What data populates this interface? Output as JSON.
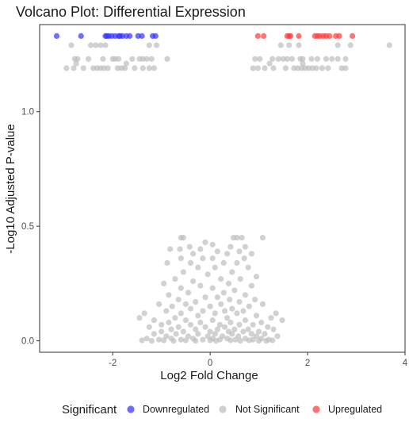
{
  "chart_data": {
    "type": "scatter",
    "title": "Volcano Plot: Differential Expression",
    "xlabel": "Log2 Fold Change",
    "ylabel": "-Log10 Adjusted P-value",
    "xlim": [
      -3.5,
      4.0
    ],
    "ylim": [
      -0.05,
      1.38
    ],
    "x_ticks": [
      -2,
      0,
      2,
      4
    ],
    "y_ticks": [
      0.0,
      0.5,
      1.0
    ],
    "x_tick_labels": [
      "-2",
      "0",
      "2",
      "4"
    ],
    "y_tick_labels": [
      "0.0",
      "0.5",
      "1.0"
    ],
    "grid": false,
    "legend": {
      "title": "Significant",
      "position": "bottom",
      "entries": [
        {
          "label": "Downregulated",
          "color": "#3333ff"
        },
        {
          "label": "Not Significant",
          "color": "#bdbdbd"
        },
        {
          "label": "Upregulated",
          "color": "#ff3a3a"
        }
      ]
    },
    "series": [
      {
        "name": "Downregulated",
        "color": "#3333ff",
        "points": [
          [
            -3.15,
            1.33
          ],
          [
            -2.65,
            1.33
          ],
          [
            -2.15,
            1.33
          ],
          [
            -2.08,
            1.33
          ],
          [
            -2.02,
            1.33
          ],
          [
            -1.95,
            1.33
          ],
          [
            -1.88,
            1.33
          ],
          [
            -1.8,
            1.33
          ],
          [
            -1.72,
            1.33
          ],
          [
            -1.65,
            1.33
          ],
          [
            -1.48,
            1.33
          ],
          [
            -1.4,
            1.33
          ],
          [
            -1.18,
            1.33
          ],
          [
            -1.12,
            1.33
          ],
          [
            -2.12,
            1.33
          ],
          [
            -1.85,
            1.33
          ]
        ]
      },
      {
        "name": "Upregulated",
        "color": "#ff3a3a",
        "points": [
          [
            0.98,
            1.33
          ],
          [
            1.1,
            1.33
          ],
          [
            1.58,
            1.33
          ],
          [
            1.65,
            1.33
          ],
          [
            1.82,
            1.33
          ],
          [
            2.15,
            1.33
          ],
          [
            2.2,
            1.33
          ],
          [
            2.32,
            1.33
          ],
          [
            2.38,
            1.33
          ],
          [
            2.45,
            1.33
          ],
          [
            2.58,
            1.33
          ],
          [
            2.65,
            1.33
          ],
          [
            2.92,
            1.33
          ],
          [
            1.62,
            1.33
          ],
          [
            2.25,
            1.33
          ]
        ]
      },
      {
        "name": "Not Significant",
        "color": "#bdbdbd",
        "points": [
          [
            -2.85,
            1.29
          ],
          [
            -2.45,
            1.29
          ],
          [
            -2.35,
            1.29
          ],
          [
            -2.25,
            1.29
          ],
          [
            -2.15,
            1.29
          ],
          [
            -1.25,
            1.29
          ],
          [
            -1.1,
            1.29
          ],
          [
            3.68,
            1.29
          ],
          [
            2.88,
            1.29
          ],
          [
            2.62,
            1.29
          ],
          [
            1.82,
            1.29
          ],
          [
            1.62,
            1.29
          ],
          [
            1.45,
            1.29
          ],
          [
            -2.78,
            1.23
          ],
          [
            -2.72,
            1.23
          ],
          [
            -2.5,
            1.23
          ],
          [
            -2.2,
            1.23
          ],
          [
            -2.0,
            1.23
          ],
          [
            -1.95,
            1.23
          ],
          [
            -1.88,
            1.23
          ],
          [
            -1.6,
            1.23
          ],
          [
            -1.45,
            1.23
          ],
          [
            -1.38,
            1.23
          ],
          [
            -1.3,
            1.23
          ],
          [
            -1.2,
            1.23
          ],
          [
            -0.88,
            1.23
          ],
          [
            0.92,
            1.23
          ],
          [
            1.02,
            1.23
          ],
          [
            1.28,
            1.23
          ],
          [
            1.4,
            1.23
          ],
          [
            1.5,
            1.23
          ],
          [
            1.58,
            1.23
          ],
          [
            1.68,
            1.23
          ],
          [
            1.85,
            1.23
          ],
          [
            1.9,
            1.23
          ],
          [
            2.08,
            1.23
          ],
          [
            2.2,
            1.23
          ],
          [
            2.38,
            1.23
          ],
          [
            2.5,
            1.23
          ],
          [
            2.62,
            1.23
          ],
          [
            2.78,
            1.23
          ],
          [
            -2.95,
            1.19
          ],
          [
            -2.8,
            1.19
          ],
          [
            -2.6,
            1.19
          ],
          [
            -2.4,
            1.19
          ],
          [
            -2.32,
            1.19
          ],
          [
            -2.25,
            1.19
          ],
          [
            -2.18,
            1.19
          ],
          [
            -2.1,
            1.19
          ],
          [
            -1.9,
            1.19
          ],
          [
            -1.82,
            1.19
          ],
          [
            -1.75,
            1.19
          ],
          [
            -1.55,
            1.19
          ],
          [
            -1.38,
            1.19
          ],
          [
            -1.25,
            1.19
          ],
          [
            -1.15,
            1.19
          ],
          [
            0.88,
            1.19
          ],
          [
            0.98,
            1.19
          ],
          [
            1.12,
            1.19
          ],
          [
            1.3,
            1.19
          ],
          [
            1.55,
            1.19
          ],
          [
            1.72,
            1.19
          ],
          [
            1.8,
            1.19
          ],
          [
            1.88,
            1.19
          ],
          [
            1.95,
            1.19
          ],
          [
            2.02,
            1.19
          ],
          [
            2.1,
            1.19
          ],
          [
            2.18,
            1.19
          ],
          [
            2.3,
            1.19
          ],
          [
            2.42,
            1.19
          ],
          [
            2.7,
            1.19
          ],
          [
            2.78,
            1.19
          ],
          [
            -2.75,
            1.21
          ],
          [
            -1.72,
            1.21
          ],
          [
            1.22,
            1.21
          ],
          [
            1.9,
            1.21
          ],
          [
            -0.6,
            0.45
          ],
          [
            -0.55,
            0.45
          ],
          [
            0.48,
            0.45
          ],
          [
            0.55,
            0.45
          ],
          [
            0.65,
            0.45
          ],
          [
            1.08,
            0.45
          ],
          [
            -0.1,
            0.43
          ],
          [
            0.05,
            0.42
          ],
          [
            -0.42,
            0.41
          ],
          [
            0.42,
            0.41
          ],
          [
            0.72,
            0.41
          ],
          [
            -0.82,
            0.4
          ],
          [
            -0.62,
            0.4
          ],
          [
            -0.2,
            0.4
          ],
          [
            0.15,
            0.39
          ],
          [
            0.6,
            0.39
          ],
          [
            -0.35,
            0.38
          ],
          [
            0.35,
            0.38
          ],
          [
            0.85,
            0.38
          ],
          [
            -0.6,
            0.36
          ],
          [
            -0.15,
            0.36
          ],
          [
            0.05,
            0.36
          ],
          [
            0.7,
            0.36
          ],
          [
            -0.88,
            0.34
          ],
          [
            -0.4,
            0.34
          ],
          [
            0.28,
            0.34
          ],
          [
            0.55,
            0.34
          ],
          [
            -0.25,
            0.32
          ],
          [
            0.1,
            0.32
          ],
          [
            0.78,
            0.32
          ],
          [
            -0.55,
            0.3
          ],
          [
            0.45,
            0.3
          ],
          [
            -0.05,
            0.29
          ],
          [
            0.95,
            0.28
          ],
          [
            -0.72,
            0.27
          ],
          [
            0.22,
            0.27
          ],
          [
            0.62,
            0.27
          ],
          [
            -0.35,
            0.26
          ],
          [
            -0.95,
            0.25
          ],
          [
            0.38,
            0.25
          ],
          [
            -0.2,
            0.24
          ],
          [
            0.85,
            0.24
          ],
          [
            -0.6,
            0.23
          ],
          [
            0.05,
            0.23
          ],
          [
            0.5,
            0.22
          ],
          [
            -0.45,
            0.21
          ],
          [
            0.28,
            0.21
          ],
          [
            -0.85,
            0.2
          ],
          [
            0.72,
            0.2
          ],
          [
            -0.1,
            0.19
          ],
          [
            0.15,
            0.19
          ],
          [
            -0.65,
            0.18
          ],
          [
            0.4,
            0.18
          ],
          [
            0.92,
            0.18
          ],
          [
            -0.3,
            0.17
          ],
          [
            0.6,
            0.17
          ],
          [
            -1.05,
            0.16
          ],
          [
            -0.5,
            0.16
          ],
          [
            0.22,
            0.16
          ],
          [
            1.08,
            0.16
          ],
          [
            -0.78,
            0.15
          ],
          [
            0.0,
            0.15
          ],
          [
            0.8,
            0.15
          ],
          [
            -0.4,
            0.14
          ],
          [
            0.45,
            0.14
          ],
          [
            -0.9,
            0.13
          ],
          [
            -0.15,
            0.13
          ],
          [
            0.3,
            0.13
          ],
          [
            0.68,
            0.13
          ],
          [
            -0.6,
            0.12
          ],
          [
            0.1,
            0.12
          ],
          [
            0.55,
            0.12
          ],
          [
            -1.35,
            0.12
          ],
          [
            1.35,
            0.12
          ],
          [
            -0.25,
            0.11
          ],
          [
            0.95,
            0.11
          ],
          [
            -1.45,
            0.1
          ],
          [
            -0.72,
            0.1
          ],
          [
            0.35,
            0.1
          ],
          [
            1.25,
            0.1
          ],
          [
            -1.15,
            0.09
          ],
          [
            -0.5,
            0.09
          ],
          [
            0.05,
            0.09
          ],
          [
            0.72,
            0.09
          ],
          [
            1.48,
            0.09
          ],
          [
            -0.85,
            0.08
          ],
          [
            -0.2,
            0.08
          ],
          [
            0.42,
            0.08
          ],
          [
            1.05,
            0.08
          ],
          [
            -1.0,
            0.07
          ],
          [
            -0.4,
            0.07
          ],
          [
            0.2,
            0.07
          ],
          [
            0.6,
            0.07
          ],
          [
            0.88,
            0.07
          ],
          [
            -0.65,
            0.06
          ],
          [
            -0.1,
            0.06
          ],
          [
            0.3,
            0.06
          ],
          [
            1.18,
            0.06
          ],
          [
            -1.25,
            0.06
          ],
          [
            -0.8,
            0.05
          ],
          [
            -0.3,
            0.05
          ],
          [
            0.15,
            0.05
          ],
          [
            0.5,
            0.05
          ],
          [
            0.78,
            0.05
          ],
          [
            1.3,
            0.05
          ],
          [
            -1.0,
            0.04
          ],
          [
            -0.55,
            0.04
          ],
          [
            0.0,
            0.04
          ],
          [
            0.38,
            0.04
          ],
          [
            0.68,
            0.04
          ],
          [
            1.0,
            0.04
          ],
          [
            -1.15,
            0.03
          ],
          [
            -0.7,
            0.03
          ],
          [
            -0.25,
            0.03
          ],
          [
            0.1,
            0.03
          ],
          [
            0.45,
            0.03
          ],
          [
            0.85,
            0.03
          ],
          [
            1.12,
            0.03
          ],
          [
            -0.9,
            0.02
          ],
          [
            -0.45,
            0.02
          ],
          [
            -0.05,
            0.02
          ],
          [
            0.25,
            0.02
          ],
          [
            0.58,
            0.02
          ],
          [
            0.95,
            0.02
          ],
          [
            1.38,
            0.02
          ],
          [
            -1.3,
            0.01
          ],
          [
            -0.8,
            0.01
          ],
          [
            -0.35,
            0.01
          ],
          [
            0.05,
            0.01
          ],
          [
            0.35,
            0.01
          ],
          [
            0.72,
            0.01
          ],
          [
            1.05,
            0.01
          ],
          [
            -1.05,
            0.005
          ],
          [
            -0.6,
            0.005
          ],
          [
            -0.15,
            0.005
          ],
          [
            0.2,
            0.005
          ],
          [
            0.52,
            0.005
          ],
          [
            0.88,
            0.005
          ],
          [
            1.2,
            0.005
          ],
          [
            -1.4,
            0.002
          ],
          [
            -0.95,
            0.002
          ],
          [
            -0.5,
            0.002
          ],
          [
            0.0,
            0.002
          ],
          [
            0.42,
            0.002
          ],
          [
            0.8,
            0.002
          ],
          [
            1.28,
            0.002
          ],
          [
            -0.75,
            0.0
          ],
          [
            -0.3,
            0.0
          ],
          [
            0.12,
            0.0
          ],
          [
            0.62,
            0.0
          ],
          [
            1.0,
            0.0
          ],
          [
            -1.2,
            0.0
          ],
          [
            1.15,
            0.0
          ]
        ]
      }
    ]
  }
}
